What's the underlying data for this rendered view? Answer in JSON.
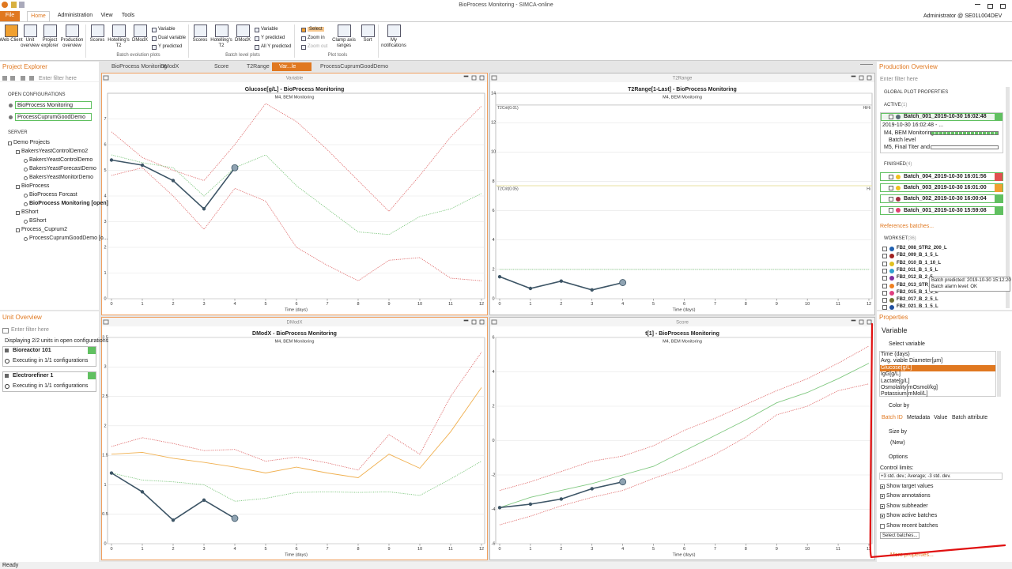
{
  "app": {
    "title": "BioProcess Monitoring - SIMCA-online",
    "user": "Administrator @ SE01L004DEV",
    "status": "Ready"
  },
  "menu": [
    "File",
    "Home",
    "Administration",
    "View",
    "Tools"
  ],
  "ribbon": {
    "buttons": [
      "Web Client",
      "Unit overview",
      "Project explorer",
      "Production overview",
      "Scores",
      "Hotelling's T2",
      "DModX",
      "Variable",
      "Dual variable",
      "Y predicted",
      "Scores",
      "Hotelling's T2",
      "DModX",
      "Variable",
      "Y predicted",
      "All Y predicted",
      "Select",
      "Zoom in",
      "Zoom out",
      "Clamp axis ranges",
      "Sort",
      "My notifications"
    ],
    "groups": [
      "Batch evolution plots",
      "Batch level plots",
      "Plot tools"
    ]
  },
  "project_explorer": {
    "title": "Project Explorer",
    "filter": "Enter filter here",
    "open_label": "OPEN CONFIGURATIONS",
    "open": [
      "BioProcess Monitoring",
      "ProcessCuprumGoodDemo"
    ],
    "server_label": "SERVER",
    "tree": [
      {
        "label": "Demo Projects",
        "children": [
          {
            "label": "BakersYeastControlDemo2",
            "children": [
              {
                "label": "BakersYeastControlDemo"
              },
              {
                "label": "BakersYeastForecastDemo"
              },
              {
                "label": "BakersYeastMonitorDemo"
              }
            ]
          },
          {
            "label": "BioProcess",
            "children": [
              {
                "label": "BioProcess Forcast"
              },
              {
                "label": "BioProcess Monitoring [open]"
              }
            ]
          },
          {
            "label": "BShort",
            "children": [
              {
                "label": "BShort"
              }
            ]
          },
          {
            "label": "Process_Cuprum2",
            "children": [
              {
                "label": "ProcessCuprumGoodDemo [o..."
              }
            ]
          }
        ]
      }
    ]
  },
  "unit_overview": {
    "title": "Unit Overview",
    "filter": "Enter filter here",
    "summary": "Displaying 2/2 units in open configurations",
    "units": [
      {
        "name": "Bioreactor 101",
        "status": "Executing in 1/1 configurations"
      },
      {
        "name": "Electrorefiner 1",
        "status": "Executing in 1/1 configurations"
      }
    ]
  },
  "tabs": [
    "BioProcess Monitoring",
    "DModX",
    "Score",
    "T2Range",
    "Var...le",
    "ProcessCuprumGoodDemo"
  ],
  "charts": [
    {
      "type": "line",
      "window_title": "Variable",
      "title": "Glucose[g/L] - BioProcess Monitoring",
      "subtitle": "M4, BEM Monitoring",
      "xlabel": "Time (days)",
      "x": [
        0,
        1,
        2,
        3,
        4,
        5,
        6,
        7,
        8,
        9,
        10,
        11,
        12
      ],
      "xlim": [
        0,
        12
      ],
      "xticks": [
        0,
        1,
        2,
        3,
        4,
        5,
        6,
        7,
        8,
        9,
        10,
        11,
        12
      ],
      "ylim": [
        0,
        8
      ],
      "yticks": [
        0,
        1,
        2,
        3,
        4,
        5,
        6,
        7
      ],
      "grid": true,
      "series": [
        {
          "color": "#e07070",
          "style": "dotted",
          "values": [
            6.5,
            5.5,
            5.0,
            4.6,
            6.0,
            7.6,
            6.9,
            5.8,
            4.6,
            3.4,
            4.8,
            6.3,
            7.5
          ]
        },
        {
          "color": "#80c880",
          "style": "dotted",
          "values": [
            5.6,
            5.3,
            5.1,
            4.0,
            5.1,
            5.6,
            4.4,
            3.5,
            2.6,
            2.5,
            3.2,
            3.5,
            4.1
          ]
        },
        {
          "color": "#e07070",
          "style": "dotted",
          "values": [
            4.8,
            5.1,
            4.0,
            2.7,
            4.3,
            3.8,
            2.0,
            1.3,
            0.7,
            1.5,
            1.6,
            0.8,
            0.7
          ]
        },
        {
          "color": "#3d5566",
          "style": "solid",
          "markers": true,
          "values": [
            5.4,
            5.2,
            4.6,
            3.5,
            5.1,
            null,
            null,
            null,
            null,
            null,
            null,
            null,
            null
          ]
        }
      ]
    },
    {
      "type": "line",
      "window_title": "T2Range",
      "title": "T2Range[1-Last] - BioProcess Monitoring",
      "subtitle": "M4, BEM Monitoring",
      "xlabel": "Time (days)",
      "x": [
        0,
        1,
        2,
        3,
        4,
        5,
        6,
        7,
        8,
        9,
        10,
        11,
        12
      ],
      "xlim": [
        0,
        12
      ],
      "xticks": [
        0,
        1,
        2,
        3,
        4,
        5,
        6,
        7,
        8,
        9,
        10,
        11,
        12
      ],
      "ylim": [
        0,
        14
      ],
      "yticks": [
        0,
        2,
        4,
        6,
        8,
        10,
        12,
        14
      ],
      "grid": true,
      "limits": [
        {
          "label": "T2Crit(0.01)",
          "alarm": "HiHi",
          "value": 13.2,
          "color": "#c8c8c8"
        },
        {
          "label": "T2Crit(0.05)",
          "alarm": "Hi",
          "value": 7.7,
          "color": "#e8e0a0"
        }
      ],
      "series": [
        {
          "color": "#80c880",
          "style": "dotted",
          "values": [
            2,
            2,
            2,
            2,
            2,
            2,
            2,
            2,
            2,
            2,
            2,
            2,
            2
          ]
        },
        {
          "color": "#3d5566",
          "style": "solid",
          "markers": true,
          "values": [
            1.5,
            0.7,
            1.2,
            0.6,
            1.1,
            null,
            null,
            null,
            null,
            null,
            null,
            null,
            null
          ]
        }
      ]
    },
    {
      "type": "line",
      "window_title": "DModX",
      "title": "DModX - BioProcess Monitoring",
      "subtitle": "M4, BEM Monitoring",
      "xlabel": "Time (days)",
      "x": [
        0,
        1,
        2,
        3,
        4,
        5,
        6,
        7,
        8,
        9,
        10,
        11,
        12
      ],
      "xlim": [
        0,
        12
      ],
      "xticks": [
        0,
        1,
        2,
        3,
        4,
        5,
        6,
        7,
        8,
        9,
        10,
        11,
        12
      ],
      "ylim": [
        0,
        3.5
      ],
      "yticks": [
        0,
        0.5,
        1,
        1.5,
        2,
        2.5,
        3,
        3.5
      ],
      "grid": true,
      "series": [
        {
          "color": "#e07070",
          "style": "dotted",
          "values": [
            1.65,
            1.8,
            1.7,
            1.58,
            1.6,
            1.4,
            1.47,
            1.37,
            1.25,
            1.85,
            1.52,
            2.5,
            3.25
          ]
        },
        {
          "color": "#f0b050",
          "style": "solid",
          "values": [
            1.52,
            1.55,
            1.45,
            1.38,
            1.3,
            1.2,
            1.3,
            1.2,
            1.12,
            1.52,
            1.28,
            1.9,
            2.65
          ]
        },
        {
          "color": "#80c880",
          "style": "dotted",
          "values": [
            1.2,
            1.08,
            1.05,
            1.0,
            0.72,
            0.77,
            0.87,
            0.88,
            0.87,
            0.88,
            0.82,
            1.1,
            1.4
          ]
        },
        {
          "color": "#3d5566",
          "style": "solid",
          "markers": true,
          "values": [
            1.2,
            0.88,
            0.4,
            0.74,
            0.43,
            null,
            null,
            null,
            null,
            null,
            null,
            null,
            null
          ]
        }
      ]
    },
    {
      "type": "line",
      "window_title": "Score",
      "title": "t[1] - BioProcess Monitoring",
      "subtitle": "M4, BEM Monitoring",
      "xlabel": "Time (days)",
      "x": [
        0,
        1,
        2,
        3,
        4,
        5,
        6,
        7,
        8,
        9,
        10,
        11,
        12
      ],
      "xlim": [
        0,
        12
      ],
      "xticks": [
        0,
        1,
        2,
        3,
        4,
        5,
        6,
        7,
        8,
        9,
        10,
        11,
        12
      ],
      "ylim": [
        -6,
        6
      ],
      "yticks": [
        -6,
        -4,
        -2,
        0,
        2,
        4,
        6
      ],
      "grid": true,
      "series": [
        {
          "color": "#e07070",
          "style": "dotted",
          "values": [
            -2.9,
            -2.4,
            -1.8,
            -1.2,
            -0.9,
            -0.3,
            0.6,
            1.3,
            2.1,
            2.9,
            3.6,
            4.5,
            5.5
          ]
        },
        {
          "color": "#80c880",
          "style": "solid",
          "values": [
            -3.9,
            -3.3,
            -2.9,
            -2.5,
            -2.0,
            -1.5,
            -0.6,
            0.3,
            1.2,
            2.2,
            2.8,
            3.6,
            4.5
          ]
        },
        {
          "color": "#e07070",
          "style": "dotted",
          "values": [
            -4.9,
            -4.4,
            -3.8,
            -3.3,
            -2.9,
            -2.2,
            -1.6,
            -0.8,
            0.2,
            1.5,
            2.0,
            2.9,
            3.3
          ]
        },
        {
          "color": "#3d5566",
          "style": "solid",
          "markers": true,
          "values": [
            -3.9,
            -3.7,
            -3.4,
            -2.8,
            -2.4,
            null,
            null,
            null,
            null,
            null,
            null,
            null,
            null
          ]
        }
      ]
    }
  ],
  "production_overview": {
    "title": "Production Overview",
    "filter": "Enter filter here",
    "global": "GLOBAL PLOT PROPERTIES",
    "active_label": "ACTIVE",
    "active_count": "(1)",
    "active": {
      "name": "Batch_001_2019-10-30 16:02:48",
      "time": "2019-10-30 16:02:48 - ...",
      "model": "M4, BEM Monitoring",
      "level": "Batch level",
      "level_model": "M5, Final Titer and ..."
    },
    "finished_label": "FINISHED",
    "finished_count": "(4)",
    "finished": [
      {
        "name": "Batch_004_2019-10-30 16:01:56",
        "dot": "#f0c020",
        "status": "#e05050"
      },
      {
        "name": "Batch_003_2019-10-30 16:01:00",
        "dot": "#f0c020",
        "status": "#f0a030"
      },
      {
        "name": "Batch_002_2019-10-30 16:00:04",
        "dot": "#a03040",
        "status": "#60c060"
      },
      {
        "name": "Batch_001_2019-10-30 15:59:08",
        "dot": "#e04070",
        "status": "#60c060"
      }
    ],
    "references": "References batches...",
    "workset_label": "WORKSET",
    "workset_count": "(36)",
    "workset": [
      {
        "name": "FB2_008_STR2_200_L",
        "color": "#2060b0"
      },
      {
        "name": "FB2_009_B_1_5_L",
        "color": "#a02020"
      },
      {
        "name": "FB2_010_B_1_10_L",
        "color": "#e0c020"
      },
      {
        "name": "FB2_011_B_1_5_L",
        "color": "#30a0d0"
      },
      {
        "name": "FB2_012_B_2_5",
        "color": "#8030a0"
      },
      {
        "name": "FB2_013_STR_2",
        "color": "#f08020"
      },
      {
        "name": "FB2_015_B_1_5_L",
        "color": "#e04080"
      },
      {
        "name": "FB2_017_B_2_5_L",
        "color": "#707030"
      },
      {
        "name": "FB2_021_B_1_5_L",
        "color": "#2050a0"
      }
    ],
    "tooltip": [
      "Batch predicted: 2019-10-30 15:12:20",
      "Batch alarm level: OK"
    ]
  },
  "properties": {
    "title": "Properties",
    "selected": "Variable",
    "select_variable": "Select variable",
    "variables": [
      "Time (days)",
      "Avg. viable Diameter[µm]",
      "Glucose[g/L]",
      "IgG[g/L]",
      "Lactate[g/L]",
      "Osmolality[mOsmol/kg]",
      "Potassium[mMol/L]"
    ],
    "selected_index": 2,
    "color_by": "Color by",
    "color_tabs": [
      "Batch ID",
      "Metadata",
      "Value",
      "Batch attribute"
    ],
    "size_by": "Size by",
    "size_new": "(New)",
    "options": "Options",
    "control_limits_label": "Control limits:",
    "control_limits": "+3 std. dev.; Average; -3 std. dev.",
    "checkboxes": [
      {
        "label": "Show target values",
        "checked": true
      },
      {
        "label": "Show annotations",
        "checked": true
      },
      {
        "label": "Show subheader",
        "checked": true
      },
      {
        "label": "Show active batches",
        "checked": true
      },
      {
        "label": "Show recent batches",
        "checked": false
      }
    ],
    "select_batches": "Select batches...",
    "more": "More properties..."
  }
}
